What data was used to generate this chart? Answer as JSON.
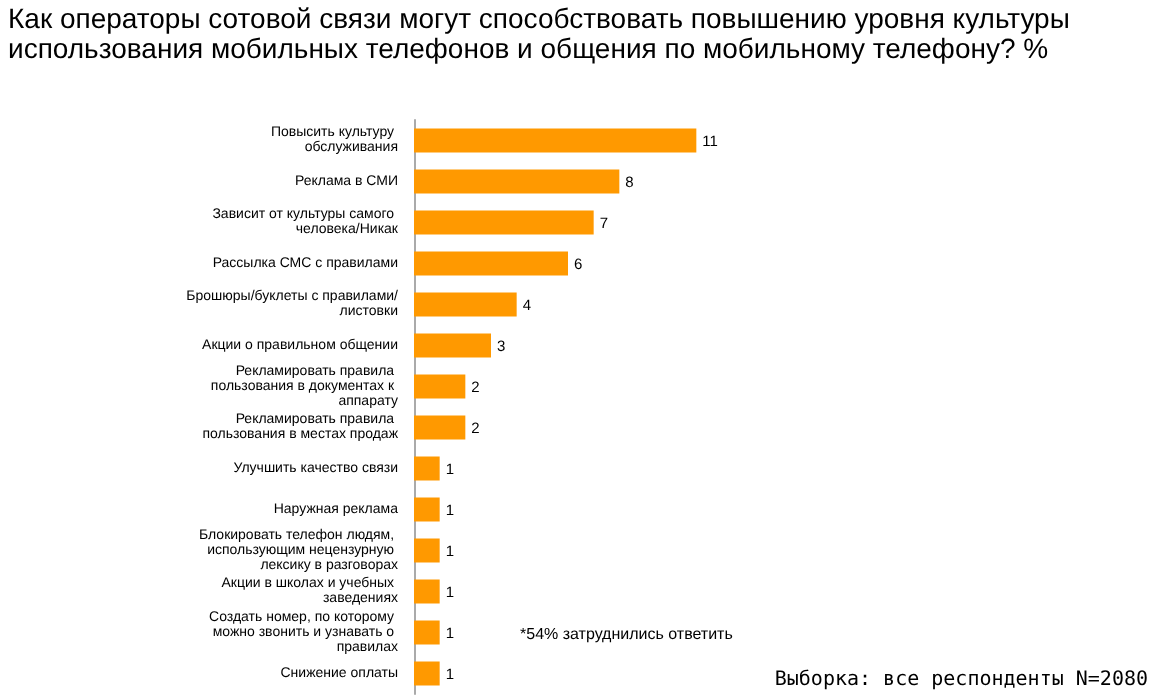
{
  "chart_data": {
    "type": "bar",
    "orientation": "horizontal",
    "title": "Как операторы сотовой связи могут способствовать повышению уровня культуры использования мобильных телефонов и общения по мобильному телефону? %",
    "categories": [
      "Повысить культуру обслуживания",
      "Реклама в СМИ",
      "Зависит от культуры самого человека/Никак",
      "Рассылка СМС с правилами",
      "Брошюры/буклеты с правилами/листовки",
      "Акции о правильном общении",
      "Рекламировать правила пользования в документах к аппарату",
      "Рекламировать правила пользования в местах продаж",
      "Улучшить качество связи",
      "Наружная реклама",
      "Блокировать телефон людям, использующим нецензурную лексику в разговорах",
      "Акции в школах и учебных заведениях",
      "Создать номер, по которому можно звонить и узнавать о правилах",
      "Снижение оплаты"
    ],
    "values": [
      11,
      8,
      7,
      6,
      4,
      3,
      2,
      2,
      1,
      1,
      1,
      1,
      1,
      1
    ],
    "color": "#ff9900",
    "data_labels": true,
    "grid": false,
    "annotations": [
      "*54% затруднились ответить",
      "Выборка: все респонденты N=2080"
    ]
  }
}
